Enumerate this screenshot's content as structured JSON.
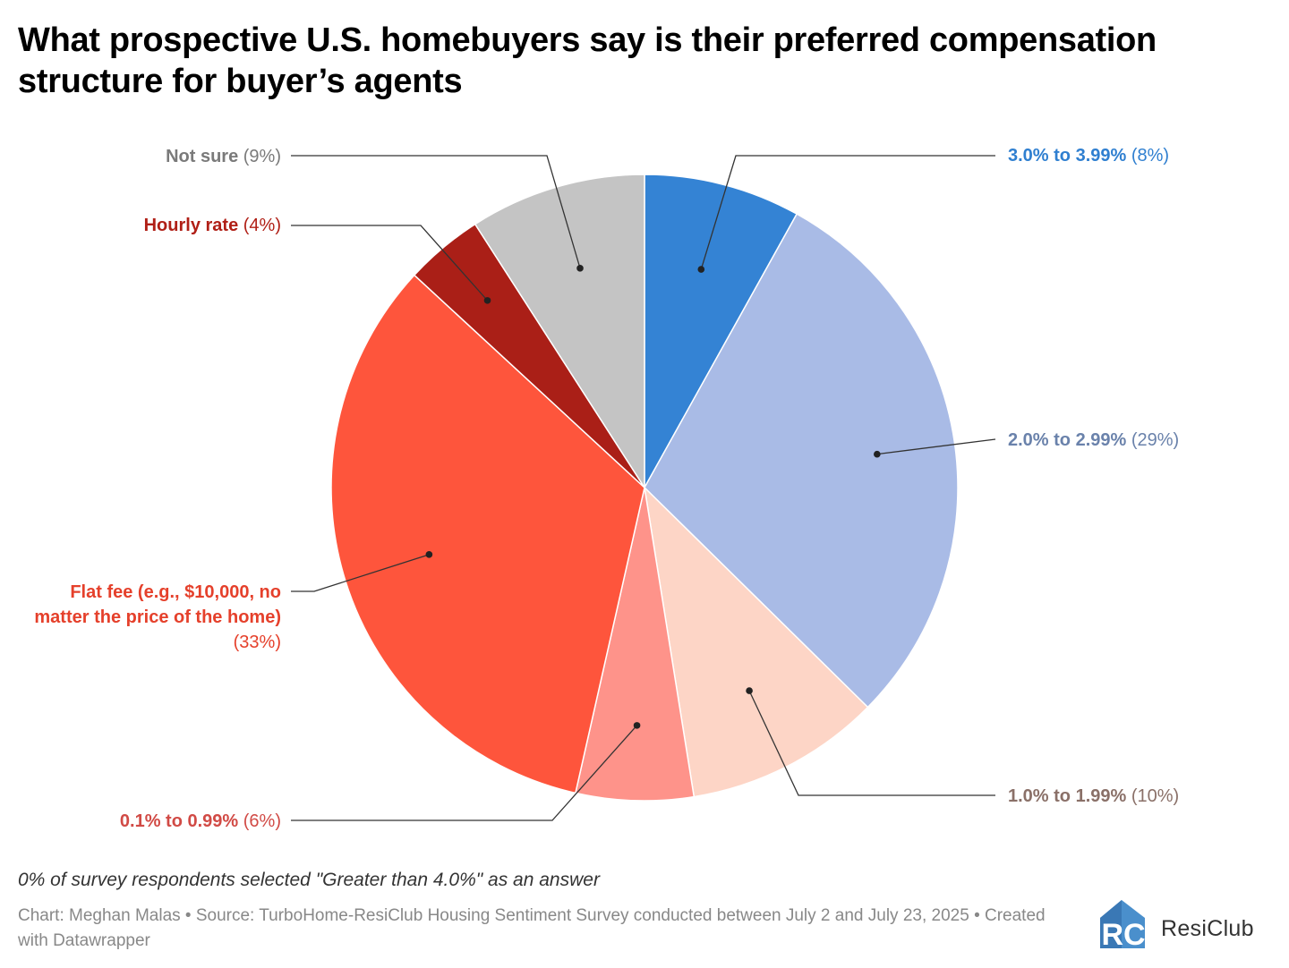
{
  "title": "What prospective U.S. homebuyers say is their preferred compensation structure for buyer’s agents",
  "note": "0% of survey respondents selected \"Greater than 4.0%\" as an answer",
  "source": "Chart: Meghan Malas • Source: TurboHome-ResiClub Housing Sentiment Survey conducted between July 2 and July 23, 2025 • Created with Datawrapper",
  "brand": {
    "name": "ResiClub",
    "logo_letters": "RC"
  },
  "chart_data": {
    "type": "pie",
    "title": "What prospective U.S. homebuyers say is their preferred compensation structure for buyer’s agents",
    "start": "12 o'clock, clockwise",
    "slices": [
      {
        "key": "s3",
        "name": "3.0% to 3.99%",
        "pct_label": "(8%)",
        "value": 8,
        "color": "#3483d4",
        "label_color": "#2f7fd0"
      },
      {
        "key": "s2",
        "name": "2.0% to 2.99%",
        "pct_label": "(29%)",
        "value": 29,
        "color": "#a9bbe6",
        "label_color": "#6a82ab"
      },
      {
        "key": "s1",
        "name": "1.0% to 1.99%",
        "pct_label": "(10%)",
        "value": 10,
        "color": "#fdd5c6",
        "label_color": "#8a7068"
      },
      {
        "key": "s0",
        "name": "0.1% to 0.99%",
        "pct_label": "(6%)",
        "value": 6,
        "color": "#fe938a",
        "label_color": "#d14a45"
      },
      {
        "key": "flat",
        "name": "Flat fee (e.g., $10,000, no matter the price of the home)",
        "pct_label": "(33%)",
        "value": 33,
        "color": "#fe553c",
        "label_color": "#e5402b"
      },
      {
        "key": "hourly",
        "name": "Hourly rate",
        "pct_label": "(4%)",
        "value": 4,
        "color": "#aa1f17",
        "label_color": "#b01f16"
      },
      {
        "key": "notsure",
        "name": "Not sure",
        "pct_label": "(9%)",
        "value": 9,
        "color": "#c4c4c4",
        "label_color": "#7a7a7a"
      }
    ]
  }
}
